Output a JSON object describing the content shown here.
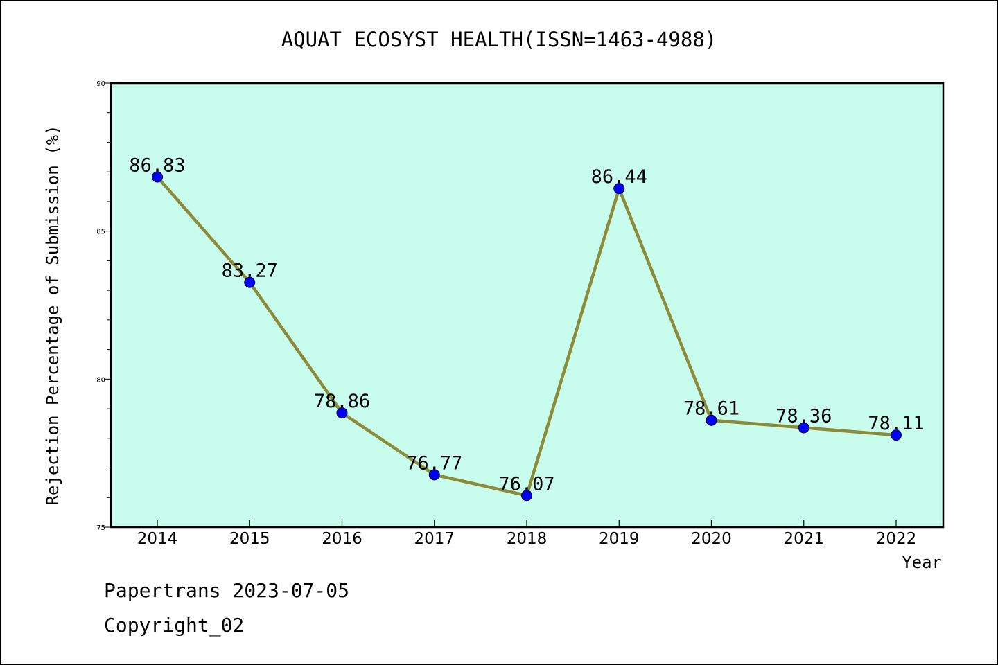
{
  "chart_data": {
    "type": "line",
    "title": "AQUAT ECOSYST HEALTH(ISSN=1463-4988)",
    "xlabel": "Year",
    "ylabel": "Rejection Percentage of Submission (%)",
    "categories": [
      "2014",
      "2015",
      "2016",
      "2017",
      "2018",
      "2019",
      "2020",
      "2021",
      "2022"
    ],
    "values": [
      86.83,
      83.27,
      78.86,
      76.77,
      76.07,
      86.44,
      78.61,
      78.36,
      78.11
    ],
    "point_labels": [
      "86.83",
      "83.27",
      "78.86",
      "76.77",
      "76.07",
      "86.44",
      "78.61",
      "78.36",
      "78.11"
    ],
    "ylim": [
      75,
      90
    ],
    "yticks": [
      75,
      80,
      85,
      90
    ],
    "ytick_labels": [
      "75",
      "80",
      "85",
      "90"
    ],
    "grid": false,
    "legend": "none",
    "colors": {
      "plot_background": "#c8fdee",
      "line": "#8b8b3a",
      "marker": "#0000ff"
    }
  },
  "footer": {
    "line1": "Papertrans 2023-07-05",
    "line2": "Copyright_02"
  }
}
